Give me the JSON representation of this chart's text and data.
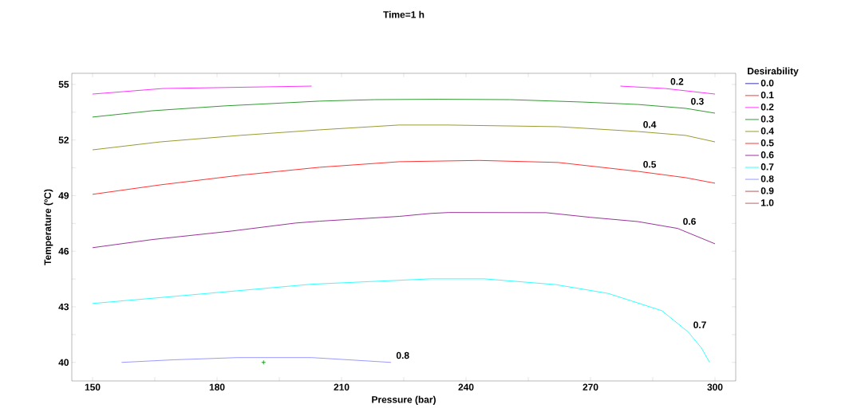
{
  "chart_data": {
    "type": "line",
    "title": "Time=1 h",
    "xlabel": "Pressure (bar)",
    "ylabel": "Temperature (ºC)",
    "legend_title": "Desirability",
    "legend": "right",
    "xlim": [
      145,
      305
    ],
    "ylim": [
      39,
      55.6
    ],
    "xticks": [
      150,
      {
        "value": 165,
        "label": null
      },
      180,
      {
        "value": 195,
        "label": null
      },
      210,
      {
        "value": 225,
        "label": null
      },
      240,
      {
        "value": 255,
        "label": null
      },
      270,
      {
        "value": 285,
        "label": null
      },
      300
    ],
    "yticks": [
      40,
      {
        "value": 41.5,
        "label": null
      },
      43,
      {
        "value": 44.5,
        "label": null
      },
      46,
      {
        "value": 47.5,
        "label": null
      },
      49,
      {
        "value": 50.5,
        "label": null
      },
      52,
      {
        "value": 53.5,
        "label": null
      },
      55
    ],
    "series": [
      {
        "name": "0.0",
        "color": "#0000a0"
      },
      {
        "name": "0.1",
        "color": "#ff0000"
      },
      {
        "name": "0.2",
        "color": "#ff00ff",
        "x": [
          150,
          166.9,
          202.8,
          null,
          277.2,
          288,
          300
        ],
        "values": [
          54.48,
          54.78,
          54.91,
          null,
          54.91,
          54.78,
          54.48
        ]
      },
      {
        "name": "0.3",
        "color": "#008000",
        "x": [
          150,
          164.4,
          181.7,
          204.7,
          218,
          233.4,
          250.7,
          268,
          281.4,
          292.9,
          300
        ],
        "values": [
          53.24,
          53.58,
          53.84,
          54.1,
          54.18,
          54.2,
          54.18,
          54.05,
          53.92,
          53.71,
          53.45
        ]
      },
      {
        "name": "0.4",
        "color": "#808000",
        "x": [
          150,
          166.3,
          185.5,
          204.7,
          223.9,
          235.4,
          262.2,
          281.4,
          292.9,
          300
        ],
        "values": [
          51.47,
          51.9,
          52.25,
          52.55,
          52.81,
          52.81,
          52.72,
          52.46,
          52.25,
          51.9
        ]
      },
      {
        "name": "0.5",
        "color": "#ff0000",
        "x": [
          150,
          166.3,
          185.5,
          204.7,
          223.9,
          243.1,
          262.2,
          281.4,
          292.9,
          300
        ],
        "values": [
          49.07,
          49.58,
          50.1,
          50.53,
          50.83,
          50.9,
          50.79,
          50.31,
          49.97,
          49.67
        ]
      },
      {
        "name": "0.6",
        "color": "#800080",
        "x": [
          150,
          164.4,
          183.6,
          198.9,
          204.7,
          223.9,
          231.5,
          235.9,
          259.3,
          269.9,
          281.4,
          291,
          300
        ],
        "values": [
          46.19,
          46.63,
          47.09,
          47.52,
          47.62,
          47.88,
          48.04,
          48.09,
          48.08,
          47.83,
          47.6,
          47.23,
          46.4
        ]
      },
      {
        "name": "0.7",
        "color": "#00ffff",
        "x": [
          150,
          174,
          202.8,
          231.5,
          244.4,
          261.6,
          274.3,
          287.2,
          293.5,
          296.7,
          298.7
        ],
        "values": [
          43.18,
          43.65,
          44.22,
          44.51,
          44.51,
          44.2,
          43.72,
          42.79,
          41.65,
          40.79,
          40
        ]
      },
      {
        "name": "0.8",
        "color": "#8080ff",
        "x": [
          157,
          169.5,
          184.9,
          202.8,
          211.7,
          221.9
        ],
        "values": [
          40,
          40.14,
          40.26,
          40.26,
          40.14,
          40
        ]
      },
      {
        "name": "0.9",
        "color": "#a03030"
      },
      {
        "name": "1.0",
        "color": "#a04040"
      },
      {
        "type": "scatter",
        "marker": "cross",
        "color": "#008000",
        "x": [
          191.2
        ],
        "values": [
          40
        ]
      }
    ],
    "annotations": [
      {
        "text": "0.2",
        "x": 288,
        "y": 54.78
      },
      {
        "text": "0.3",
        "x": 292.9,
        "y": 53.71
      },
      {
        "text": "0.4",
        "x": 281.4,
        "y": 52.46
      },
      {
        "text": "0.5",
        "x": 281.4,
        "y": 50.31
      },
      {
        "text": "0.6",
        "x": 291,
        "y": 47.23
      },
      {
        "text": "0.7",
        "x": 293.5,
        "y": 41.65
      },
      {
        "text": "0.8",
        "x": 221.9,
        "y": 40
      }
    ]
  }
}
